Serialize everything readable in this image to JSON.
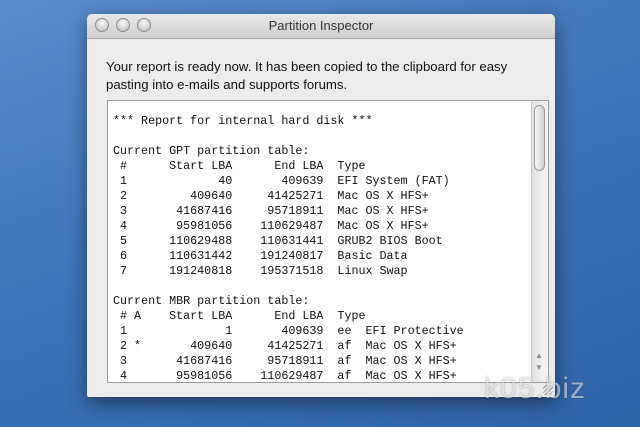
{
  "window": {
    "title": "Partition Inspector"
  },
  "message": "Your report is ready now. It has been copied to the clipboard for easy pasting into e-mails and supports forums.",
  "report_lines": [
    "*** Report for internal hard disk ***",
    "",
    "Current GPT partition table:",
    " #      Start LBA      End LBA  Type",
    " 1             40       409639  EFI System (FAT)",
    " 2         409640     41425271  Mac OS X HFS+",
    " 3       41687416     95718911  Mac OS X HFS+",
    " 4       95981056    110629487  Mac OS X HFS+",
    " 5      110629488    110631441  GRUB2 BIOS Boot",
    " 6      110631442    191240817  Basic Data",
    " 7      191240818    195371518  Linux Swap",
    "",
    "Current MBR partition table:",
    " # A    Start LBA      End LBA  Type",
    " 1              1       409639  ee  EFI Protective",
    " 2 *       409640     41425271  af  Mac OS X HFS+",
    " 3       41687416     95718911  af  Mac OS X HFS+",
    " 4       95981056    110629487  af  Mac OS X HFS+"
  ],
  "watermark": "k05.biz"
}
